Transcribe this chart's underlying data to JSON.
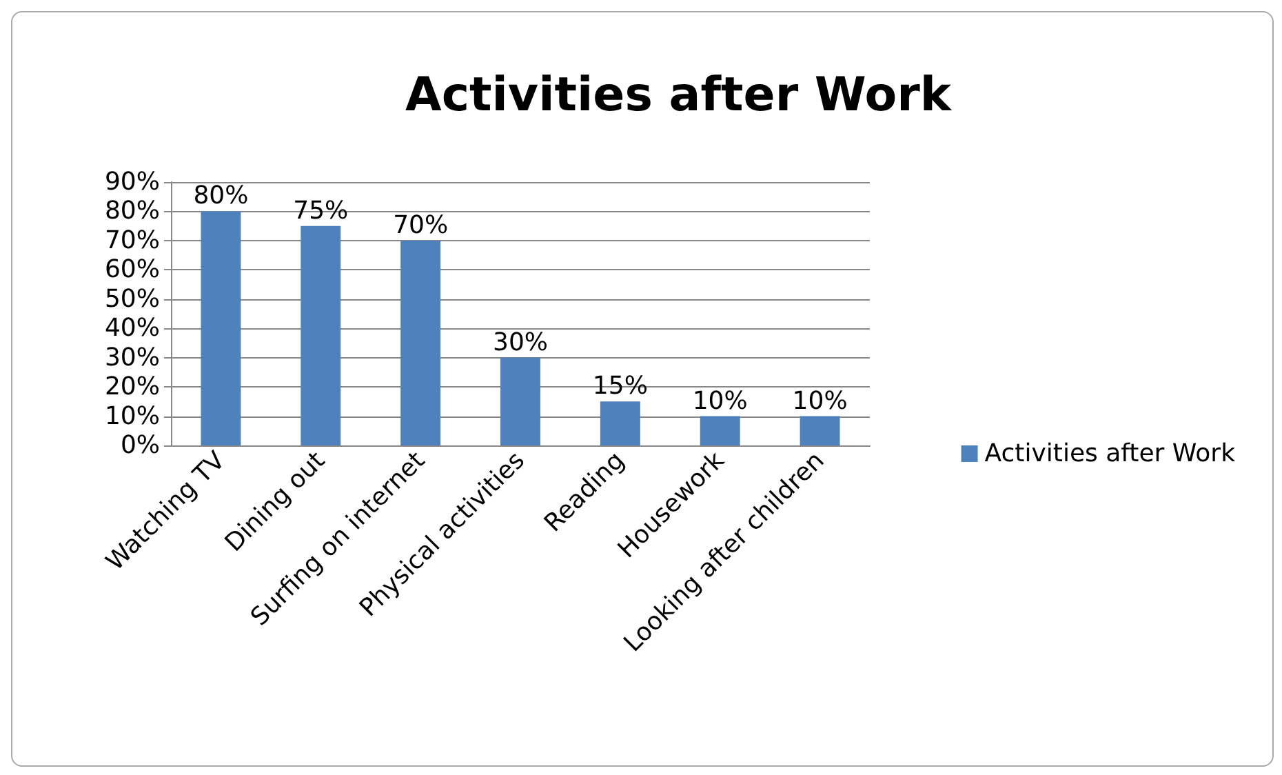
{
  "chart_data": {
    "type": "bar",
    "title": "Activities after Work",
    "categories": [
      "Watching TV",
      "Dining out",
      "Surfing on internet",
      "Physical activities",
      "Reading",
      "Housework",
      "Looking after children"
    ],
    "series": [
      {
        "name": "Activities after Work",
        "color": "#4f81bd",
        "values": [
          80,
          75,
          70,
          30,
          15,
          10,
          10
        ],
        "value_labels": [
          "80%",
          "75%",
          "70%",
          "30%",
          "15%",
          "10%",
          "10%"
        ]
      }
    ],
    "ylim": [
      0,
      90
    ],
    "yticks": [
      {
        "value": 0,
        "label": "0%"
      },
      {
        "value": 10,
        "label": "10%"
      },
      {
        "value": 20,
        "label": "20%"
      },
      {
        "value": 30,
        "label": "30%"
      },
      {
        "value": 40,
        "label": "40%"
      },
      {
        "value": 50,
        "label": "50%"
      },
      {
        "value": 60,
        "label": "60%"
      },
      {
        "value": 70,
        "label": "70%"
      },
      {
        "value": 80,
        "label": "80%"
      },
      {
        "value": 90,
        "label": "90%"
      }
    ],
    "grid": "y",
    "legend": "right"
  }
}
